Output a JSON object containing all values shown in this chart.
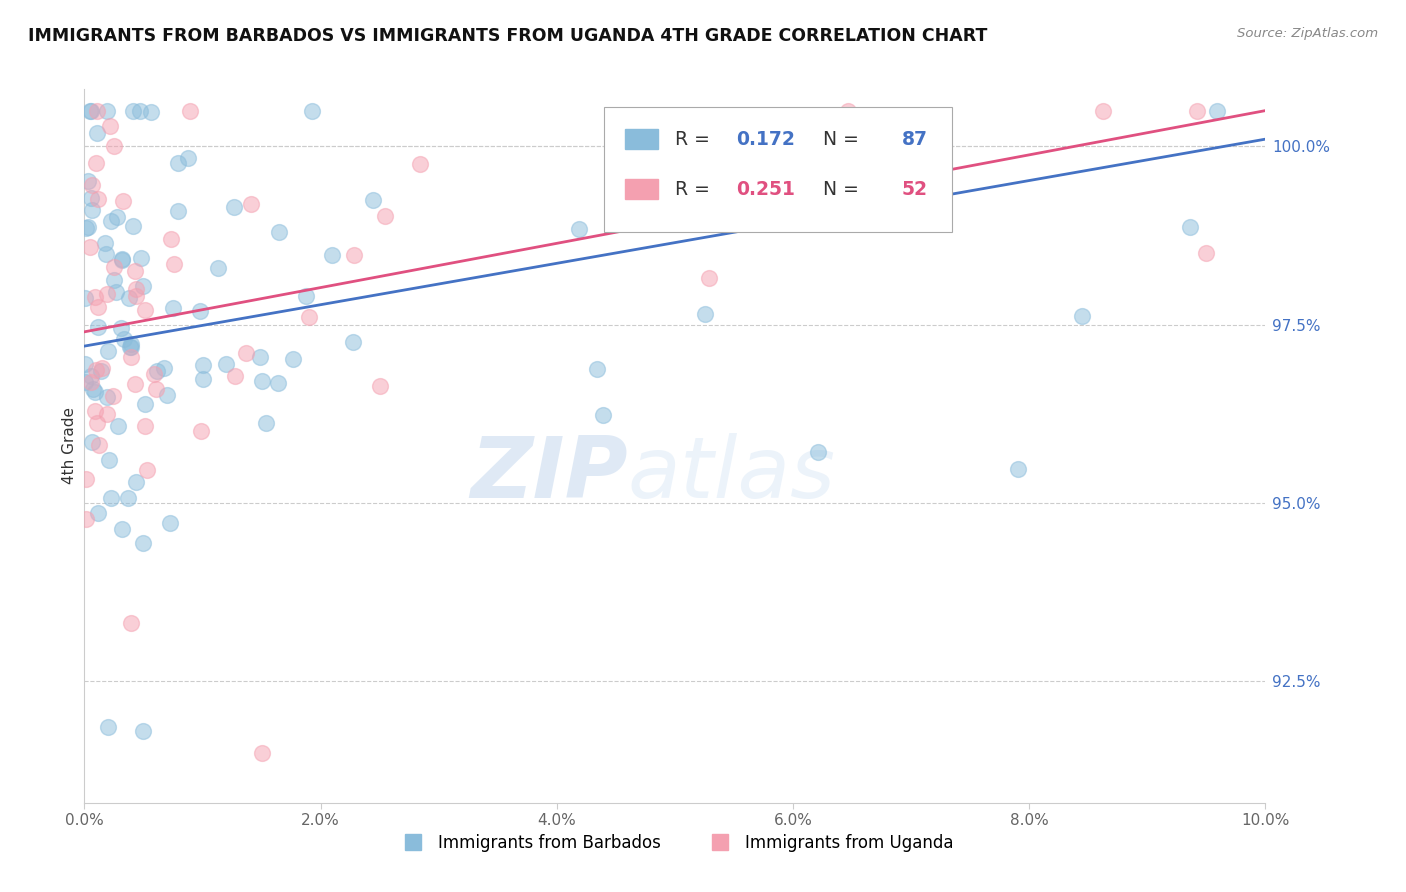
{
  "title": "IMMIGRANTS FROM BARBADOS VS IMMIGRANTS FROM UGANDA 4TH GRADE CORRELATION CHART",
  "source": "Source: ZipAtlas.com",
  "ylabel": "4th Grade",
  "legend_label_1": "Immigrants from Barbados",
  "legend_label_2": "Immigrants from Uganda",
  "r1": 0.172,
  "n1": 87,
  "r2": 0.251,
  "n2": 52,
  "color1": "#8abcdb",
  "color2": "#f4a0b0",
  "line_color1": "#4472c4",
  "line_color2": "#e05080",
  "xmin": 0.0,
  "xmax": 10.0,
  "ymin": 90.8,
  "ymax": 100.8,
  "yticks": [
    92.5,
    95.0,
    97.5,
    100.0
  ],
  "xticks": [
    0.0,
    2.0,
    4.0,
    6.0,
    8.0,
    10.0
  ],
  "watermark_zip": "ZIP",
  "watermark_atlas": "atlas",
  "background": "#ffffff",
  "tick_label_color": "#4472c4",
  "legend_r_color_1": "#4472c4",
  "legend_r_color_2": "#e05080",
  "seed": 12345
}
